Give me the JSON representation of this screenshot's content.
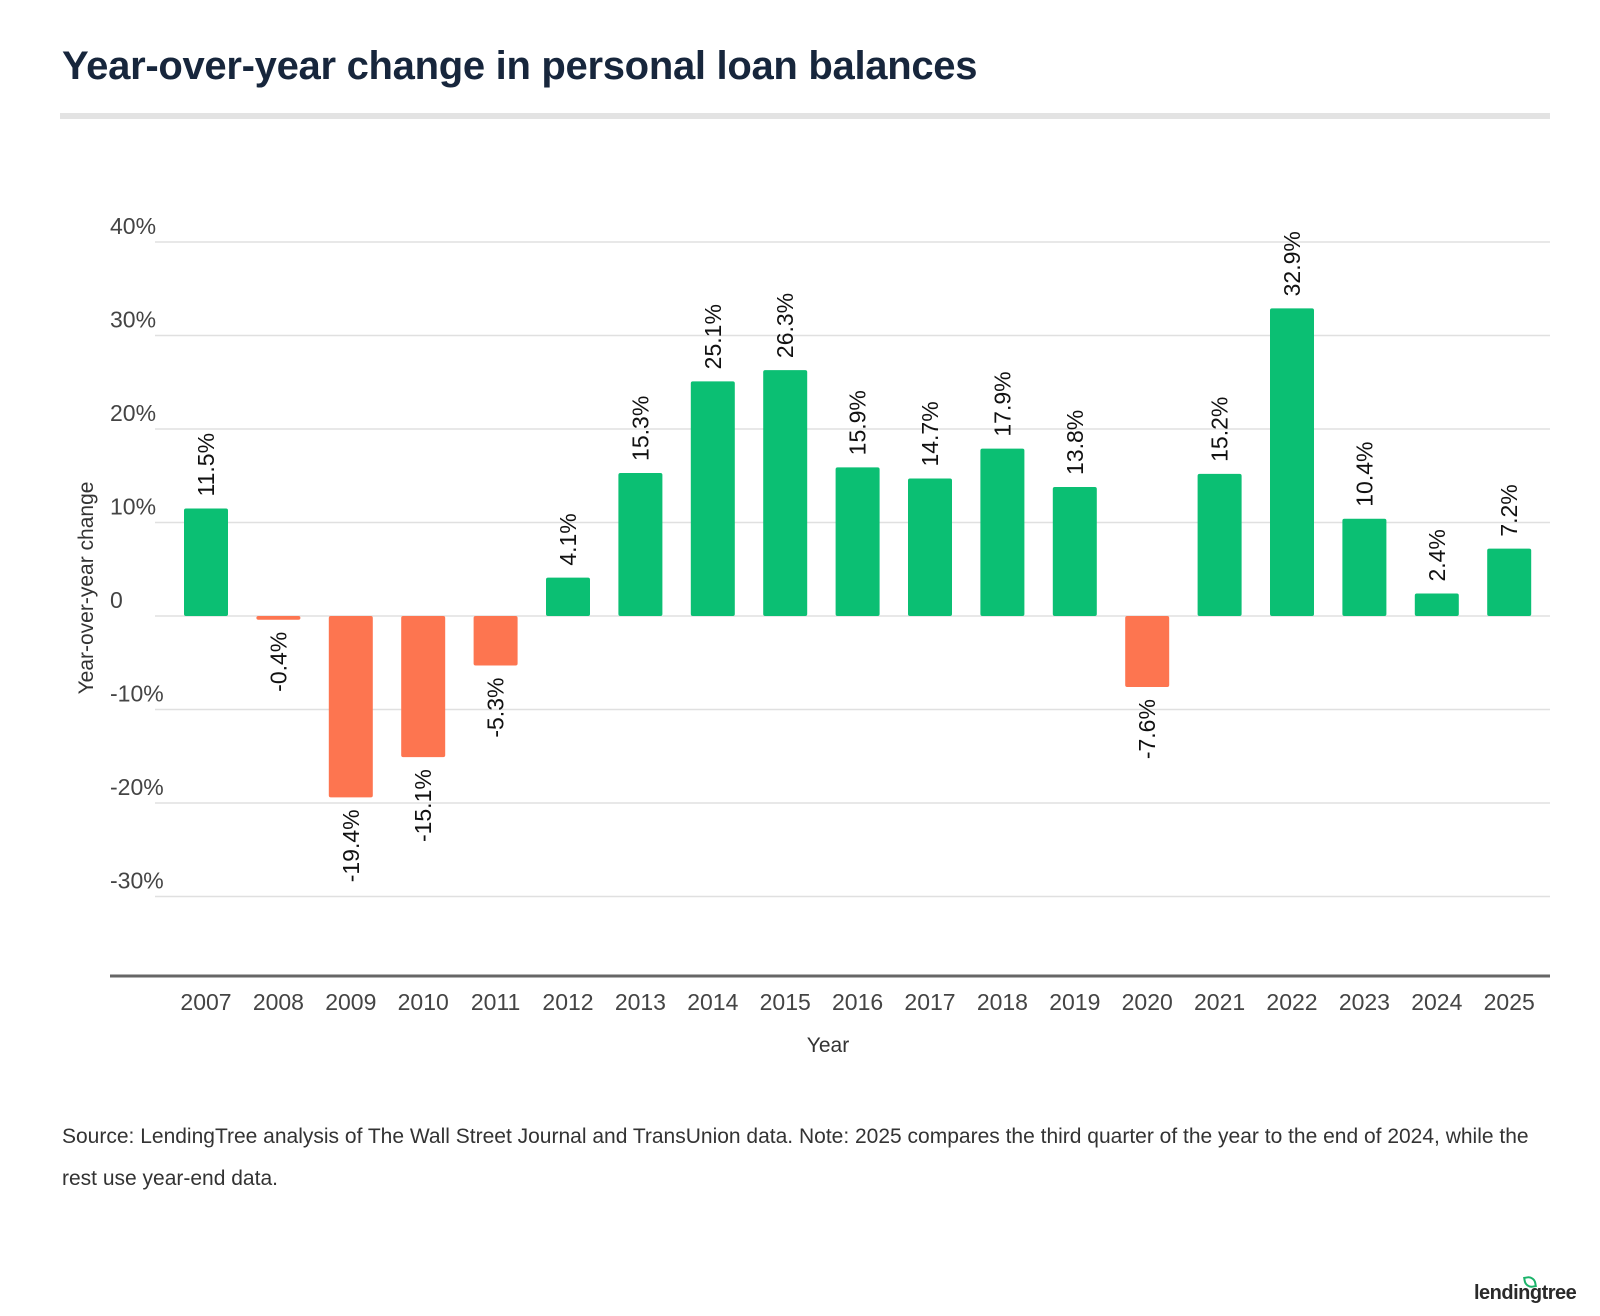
{
  "title": "Year-over-year change in personal loan balances",
  "source_note": "Source: LendingTree analysis of The Wall Street Journal and TransUnion data. Note: 2025 compares the third quarter of the year to the end of 2024, while the rest use year-end data.",
  "logo_text": "lendingtree",
  "colors": {
    "positive": "#0bbf73",
    "negative": "#fd7550",
    "gridline": "#e0e0e0",
    "baseline": "#666666"
  },
  "chart_data": {
    "type": "bar",
    "xlabel": "Year",
    "ylabel": "Year-over-year change",
    "ylim": [
      -36,
      40
    ],
    "yticks": [
      {
        "value": 40,
        "label": "40%"
      },
      {
        "value": 30,
        "label": "30%"
      },
      {
        "value": 20,
        "label": "20%"
      },
      {
        "value": 10,
        "label": "10%"
      },
      {
        "value": 0,
        "label": "0"
      },
      {
        "value": -10,
        "label": "-10%"
      },
      {
        "value": -20,
        "label": "-20%"
      },
      {
        "value": -30,
        "label": "-30%"
      }
    ],
    "grid": true,
    "legend": "none",
    "categories": [
      "2007",
      "2008",
      "2009",
      "2010",
      "2011",
      "2012",
      "2013",
      "2014",
      "2015",
      "2016",
      "2017",
      "2018",
      "2019",
      "2020",
      "2021",
      "2022",
      "2023",
      "2024",
      "2025"
    ],
    "values": [
      11.5,
      -0.4,
      -19.4,
      -15.1,
      -5.3,
      4.1,
      15.3,
      25.1,
      26.3,
      15.9,
      14.7,
      17.9,
      13.8,
      -7.6,
      15.2,
      32.9,
      10.4,
      2.4,
      7.2
    ],
    "data_labels": [
      "11.5%",
      "-0.4%",
      "-19.4%",
      "-15.1%",
      "-5.3%",
      "4.1%",
      "15.3%",
      "25.1%",
      "26.3%",
      "15.9%",
      "14.7%",
      "17.9%",
      "13.8%",
      "-7.6%",
      "15.2%",
      "32.9%",
      "10.4%",
      "2.4%",
      "7.2%"
    ]
  }
}
